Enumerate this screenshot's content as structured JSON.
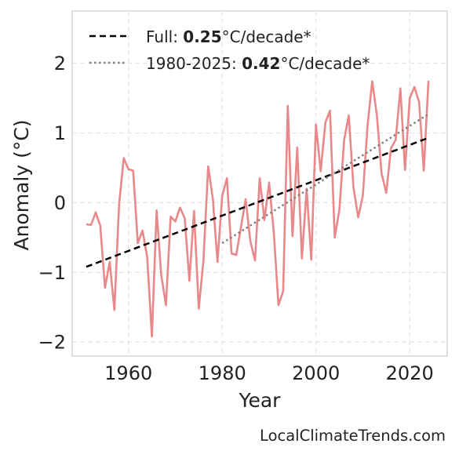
{
  "chart_data": {
    "type": "line",
    "xlabel": "Year",
    "ylabel": "Anomaly (°C)",
    "xlim": [
      1948,
      2028
    ],
    "ylim": [
      -2.2,
      2.75
    ],
    "x_ticks": [
      1960,
      1980,
      2000,
      2020
    ],
    "y_ticks": [
      -2,
      -1,
      0,
      1,
      2
    ],
    "x_tick_labels": [
      "1960",
      "1980",
      "2000",
      "2020"
    ],
    "y_tick_labels": [
      "−2",
      "−1",
      "0",
      "1",
      "2"
    ],
    "grid": true,
    "legend_position": "top-left",
    "series": [
      {
        "kind": "line",
        "color": "#e8888a",
        "x": [
          1951,
          1952,
          1953,
          1954,
          1955,
          1956,
          1957,
          1958,
          1959,
          1960,
          1961,
          1962,
          1963,
          1964,
          1965,
          1966,
          1967,
          1968,
          1969,
          1970,
          1971,
          1972,
          1973,
          1974,
          1975,
          1976,
          1977,
          1978,
          1979,
          1980,
          1981,
          1982,
          1983,
          1984,
          1985,
          1986,
          1987,
          1988,
          1989,
          1990,
          1991,
          1992,
          1993,
          1994,
          1995,
          1996,
          1997,
          1998,
          1999,
          2000,
          2001,
          2002,
          2003,
          2004,
          2005,
          2006,
          2007,
          2008,
          2009,
          2010,
          2011,
          2012,
          2013,
          2014,
          2015,
          2016,
          2017,
          2018,
          2019,
          2020,
          2021,
          2022,
          2023,
          2024
        ],
        "y": [
          -0.31,
          -0.32,
          -0.14,
          -0.33,
          -1.22,
          -0.85,
          -1.54,
          -0.02,
          0.64,
          0.48,
          0.46,
          -0.58,
          -0.4,
          -0.78,
          -1.92,
          -0.11,
          -1.04,
          -1.47,
          -0.2,
          -0.27,
          -0.07,
          -0.22,
          -1.12,
          -0.12,
          -1.52,
          -0.83,
          0.52,
          0.05,
          -0.85,
          0.1,
          0.35,
          -0.73,
          -0.75,
          -0.35,
          0.05,
          -0.55,
          -0.83,
          0.35,
          -0.25,
          0.29,
          -0.42,
          -1.47,
          -1.27,
          1.39,
          -0.48,
          0.79,
          -0.8,
          0.2,
          -0.82,
          1.12,
          0.45,
          1.15,
          1.32,
          -0.5,
          -0.1,
          0.9,
          1.25,
          0.22,
          -0.21,
          0.1,
          1.1,
          1.74,
          1.25,
          0.42,
          0.14,
          0.78,
          0.9,
          1.64,
          0.47,
          1.5,
          1.66,
          1.44,
          0.46,
          1.75
        ]
      },
      {
        "kind": "trend",
        "name_prefix": "Full: ",
        "rate": "0.25",
        "units": "°C/decade*",
        "style": "dashed",
        "color": "#000000",
        "x": [
          1951,
          2024
        ],
        "y": [
          -0.92,
          0.93
        ]
      },
      {
        "kind": "trend",
        "name_prefix": "1980-2025: ",
        "rate": "0.42",
        "units": "°C/decade*",
        "style": "dotted",
        "color": "#808080",
        "x": [
          1980,
          2024
        ],
        "y": [
          -0.58,
          1.27
        ]
      }
    ]
  },
  "watermark": "LocalClimateTrends.com"
}
